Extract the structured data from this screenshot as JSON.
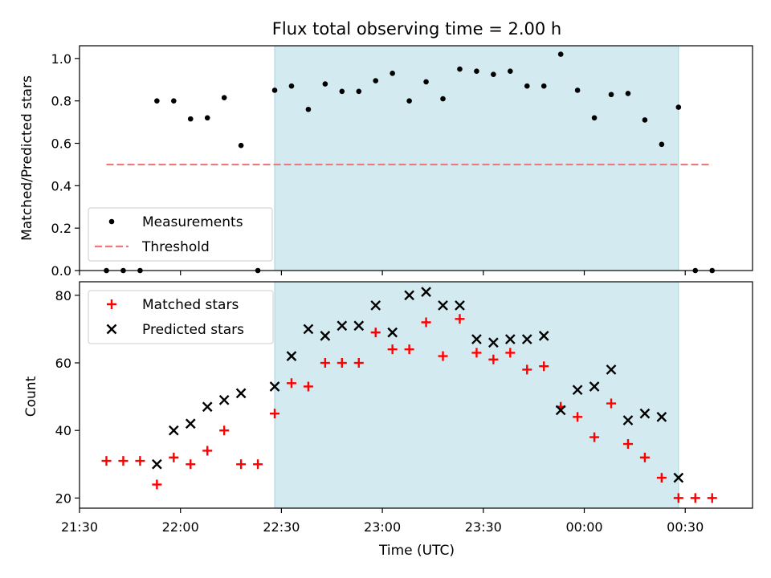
{
  "chart_data": [
    {
      "type": "scatter",
      "title": "Flux total observing time = 2.00 h",
      "ylabel": "Matched/Predicted stars",
      "ylim": [
        0.0,
        1.06
      ],
      "yticks": [
        "0.0",
        "0.2",
        "0.4",
        "0.6",
        "0.8",
        "1.0"
      ],
      "ytick_values": [
        0.0,
        0.2,
        0.4,
        0.6,
        0.8,
        1.0
      ],
      "shaded_range": [
        "22:28",
        "00:28"
      ],
      "shade_color": "#d3eaf0",
      "grid": false,
      "legend_position": "lower-left",
      "series": [
        {
          "name": "Measurements",
          "marker": "dot",
          "color": "#000000",
          "x": [
            "21:38",
            "21:43",
            "21:48",
            "21:53",
            "21:58",
            "22:03",
            "22:08",
            "22:13",
            "22:18",
            "22:23",
            "22:28",
            "22:33",
            "22:38",
            "22:43",
            "22:48",
            "22:53",
            "22:58",
            "23:03",
            "23:08",
            "23:13",
            "23:18",
            "23:23",
            "23:28",
            "23:33",
            "23:38",
            "23:43",
            "23:48",
            "23:53",
            "23:58",
            "00:03",
            "00:08",
            "00:13",
            "00:18",
            "00:23",
            "00:28",
            "00:33",
            "00:38"
          ],
          "y": [
            0.0,
            0.0,
            0.0,
            0.8,
            0.8,
            0.715,
            0.72,
            0.815,
            0.59,
            0.0,
            0.85,
            0.87,
            0.76,
            0.88,
            0.845,
            0.845,
            0.895,
            0.93,
            0.8,
            0.89,
            0.81,
            0.95,
            0.94,
            0.925,
            0.94,
            0.87,
            0.87,
            1.02,
            0.85,
            0.72,
            0.83,
            0.835,
            0.71,
            0.595,
            0.77,
            0.0,
            0.0
          ]
        },
        {
          "name": "Threshold",
          "marker": "dashed-line",
          "color": "#f07878",
          "x": [
            "21:38",
            "00:38"
          ],
          "y": [
            0.5,
            0.5
          ]
        }
      ]
    },
    {
      "type": "scatter",
      "xlabel": "Time (UTC)",
      "ylabel": "Count",
      "ylim": [
        17,
        84
      ],
      "yticks": [
        "20",
        "40",
        "60",
        "80"
      ],
      "ytick_values": [
        20,
        40,
        60,
        80
      ],
      "xticks": [
        "21:30",
        "22:00",
        "22:30",
        "23:00",
        "23:30",
        "00:00",
        "00:30"
      ],
      "xtick_values": [
        "21:30",
        "22:00",
        "22:30",
        "23:00",
        "23:30",
        "00:00",
        "00:30"
      ],
      "xlim": [
        "21:30",
        "00:50"
      ],
      "grid": false,
      "legend_position": "top-left",
      "series": [
        {
          "name": "Matched stars",
          "marker": "plus",
          "color": "#ff0000",
          "x": [
            "21:38",
            "21:43",
            "21:48",
            "21:53",
            "21:58",
            "22:03",
            "22:08",
            "22:13",
            "22:18",
            "22:23",
            "22:28",
            "22:33",
            "22:38",
            "22:43",
            "22:48",
            "22:53",
            "22:58",
            "23:03",
            "23:08",
            "23:13",
            "23:18",
            "23:23",
            "23:28",
            "23:33",
            "23:38",
            "23:43",
            "23:48",
            "23:53",
            "23:58",
            "00:03",
            "00:08",
            "00:13",
            "00:18",
            "00:23",
            "00:28",
            "00:33",
            "00:38"
          ],
          "y": [
            31,
            31,
            31,
            24,
            32,
            30,
            34,
            40,
            30,
            30,
            45,
            54,
            53,
            60,
            60,
            60,
            69,
            64,
            64,
            72,
            62,
            73,
            63,
            61,
            63,
            58,
            59,
            47,
            44,
            38,
            48,
            36,
            32,
            26,
            20,
            20,
            20
          ]
        },
        {
          "name": "Predicted stars",
          "marker": "x",
          "color": "#000000",
          "x": [
            "21:53",
            "21:58",
            "22:03",
            "22:08",
            "22:13",
            "22:18",
            "22:28",
            "22:33",
            "22:38",
            "22:43",
            "22:48",
            "22:53",
            "22:58",
            "23:03",
            "23:08",
            "23:13",
            "23:18",
            "23:23",
            "23:28",
            "23:33",
            "23:38",
            "23:43",
            "23:48",
            "23:53",
            "23:58",
            "00:03",
            "00:08",
            "00:13",
            "00:18",
            "00:23",
            "00:28"
          ],
          "y": [
            30,
            40,
            42,
            47,
            49,
            51,
            53,
            62,
            70,
            68,
            71,
            71,
            77,
            69,
            80,
            81,
            77,
            77,
            67,
            66,
            67,
            67,
            68,
            46,
            52,
            53,
            58,
            43,
            45,
            44,
            26
          ]
        }
      ]
    }
  ]
}
